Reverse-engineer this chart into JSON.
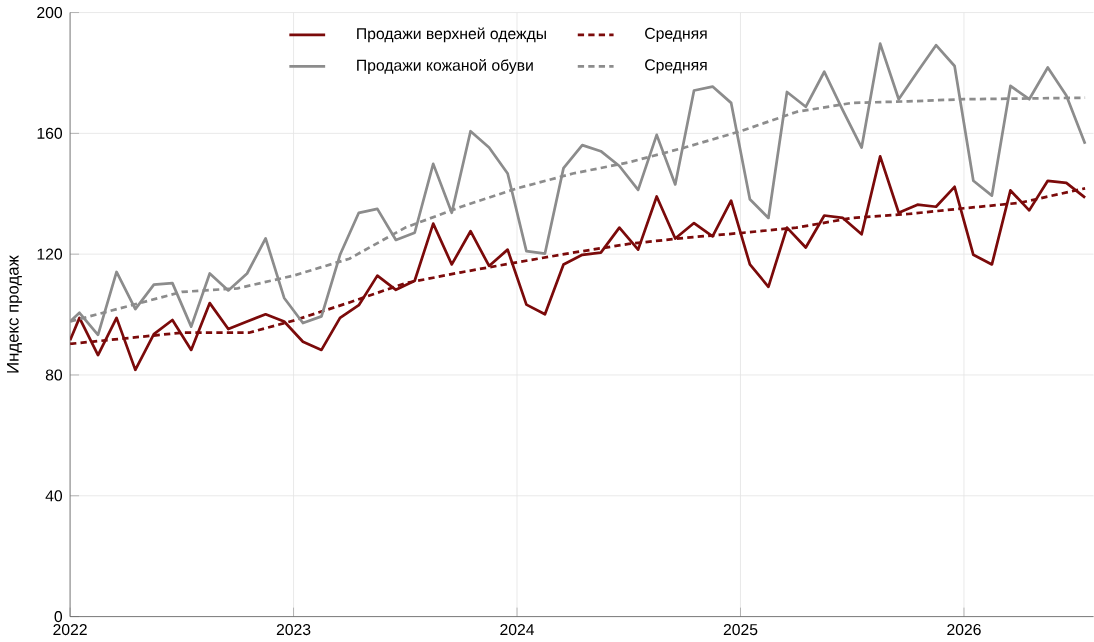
{
  "chart_data": {
    "type": "line",
    "ylabel": "Индекс продаж",
    "xlim": [
      2022,
      2026.58
    ],
    "xticks": [
      2022,
      2023,
      2024,
      2025,
      2026
    ],
    "ylim": [
      0,
      200
    ],
    "yticks": [
      0,
      40,
      80,
      120,
      160,
      200
    ],
    "grid": true,
    "legend": "top",
    "marker": "none",
    "series": [
      {
        "name": "Продажи верхней одежды",
        "color": "#7b0a0a",
        "line_style": "solid",
        "x": [
          2022.0,
          2022.042,
          2022.125,
          2022.208,
          2022.292,
          2022.375,
          2022.458,
          2022.542,
          2022.625,
          2022.708,
          2022.792,
          2022.875,
          2022.958,
          2023.042,
          2023.125,
          2023.208,
          2023.292,
          2023.375,
          2023.458,
          2023.542,
          2023.625,
          2023.708,
          2023.792,
          2023.875,
          2023.958,
          2024.042,
          2024.125,
          2024.208,
          2024.292,
          2024.375,
          2024.458,
          2024.542,
          2024.625,
          2024.708,
          2024.792,
          2024.875,
          2024.958,
          2025.042,
          2025.125,
          2025.208,
          2025.292,
          2025.375,
          2025.458,
          2025.542,
          2025.625,
          2025.708,
          2025.792,
          2025.875,
          2025.958,
          2026.042,
          2026.125,
          2026.208,
          2026.292,
          2026.375,
          2026.458,
          2026.542
        ],
        "values": [
          91.5,
          98.9,
          86.6,
          98.9,
          81.7,
          93.5,
          98.2,
          88.3,
          103.8,
          95.2,
          97.7,
          100.1,
          97.7,
          91.0,
          88.3,
          98.9,
          103.1,
          112.9,
          108.2,
          111.2,
          130.1,
          116.6,
          127.6,
          116.1,
          121.5,
          103.3,
          100.1,
          116.6,
          119.8,
          120.5,
          128.8,
          121.5,
          139.1,
          125.2,
          130.3,
          125.9,
          137.7,
          116.6,
          109.2,
          128.8,
          122.2,
          132.8,
          132.0,
          126.6,
          152.4,
          133.7,
          136.4,
          135.7,
          142.3,
          119.8,
          116.6,
          141.1,
          134.5,
          144.3,
          143.6,
          138.7
        ]
      },
      {
        "name": "Средняя",
        "color": "#7b0a0a",
        "line_style": "dashed",
        "x": [
          2022.0,
          2022.5,
          2022.8,
          2023.0,
          2023.25,
          2023.5,
          2023.75,
          2024.0,
          2024.25,
          2024.5,
          2024.75,
          2025.0,
          2025.25,
          2025.5,
          2025.75,
          2026.0,
          2026.25,
          2026.542
        ],
        "values": [
          90.3,
          94,
          94,
          98,
          104,
          110.4,
          114,
          117.3,
          120.5,
          123.4,
          125.4,
          127,
          128.8,
          132,
          133.3,
          135.2,
          137,
          141.8
        ]
      },
      {
        "name": "Продажи кожаной обуви",
        "color": "#8c8c8c",
        "line_style": "solid",
        "x": [
          2022.0,
          2022.042,
          2022.125,
          2022.208,
          2022.292,
          2022.375,
          2022.458,
          2022.542,
          2022.625,
          2022.708,
          2022.792,
          2022.875,
          2022.958,
          2023.042,
          2023.125,
          2023.208,
          2023.292,
          2023.375,
          2023.458,
          2023.542,
          2023.625,
          2023.708,
          2023.792,
          2023.875,
          2023.958,
          2024.042,
          2024.125,
          2024.208,
          2024.292,
          2024.375,
          2024.458,
          2024.542,
          2024.625,
          2024.708,
          2024.792,
          2024.875,
          2024.958,
          2025.042,
          2025.125,
          2025.208,
          2025.292,
          2025.375,
          2025.458,
          2025.542,
          2025.625,
          2025.708,
          2025.792,
          2025.875,
          2025.958,
          2026.042,
          2026.125,
          2026.208,
          2026.292,
          2026.375,
          2026.458,
          2026.542
        ],
        "values": [
          97.7,
          100.6,
          93.3,
          114.1,
          101.8,
          109.9,
          110.4,
          96.0,
          113.6,
          108.0,
          113.6,
          125.2,
          105.5,
          97.2,
          99.4,
          119.8,
          133.7,
          135.0,
          124.7,
          127.1,
          149.9,
          133.7,
          160.7,
          155.3,
          146.7,
          121.0,
          120.2,
          148.5,
          156.1,
          154.1,
          149.2,
          141.3,
          159.5,
          143.1,
          174.2,
          175.5,
          170.1,
          138.2,
          132.0,
          173.7,
          168.8,
          180.4,
          167.6,
          155.3,
          189.7,
          171.3,
          180.4,
          189.2,
          182.3,
          144.3,
          139.4,
          175.7,
          171.3,
          181.8,
          172.5,
          156.6
        ]
      },
      {
        "name": "Средняя",
        "color": "#8c8c8c",
        "line_style": "dashed",
        "x": [
          2022.0,
          2022.25,
          2022.5,
          2022.75,
          2023.0,
          2023.25,
          2023.5,
          2023.75,
          2024.0,
          2024.25,
          2024.5,
          2024.75,
          2025.0,
          2025.25,
          2025.5,
          2025.75,
          2026.0,
          2026.542
        ],
        "values": [
          97.7,
          102.6,
          107.5,
          108.7,
          112.9,
          118.5,
          128.8,
          135.7,
          141.8,
          146.7,
          150.4,
          155.3,
          160.7,
          167.1,
          170.1,
          170.6,
          171.3,
          171.8
        ]
      }
    ]
  }
}
